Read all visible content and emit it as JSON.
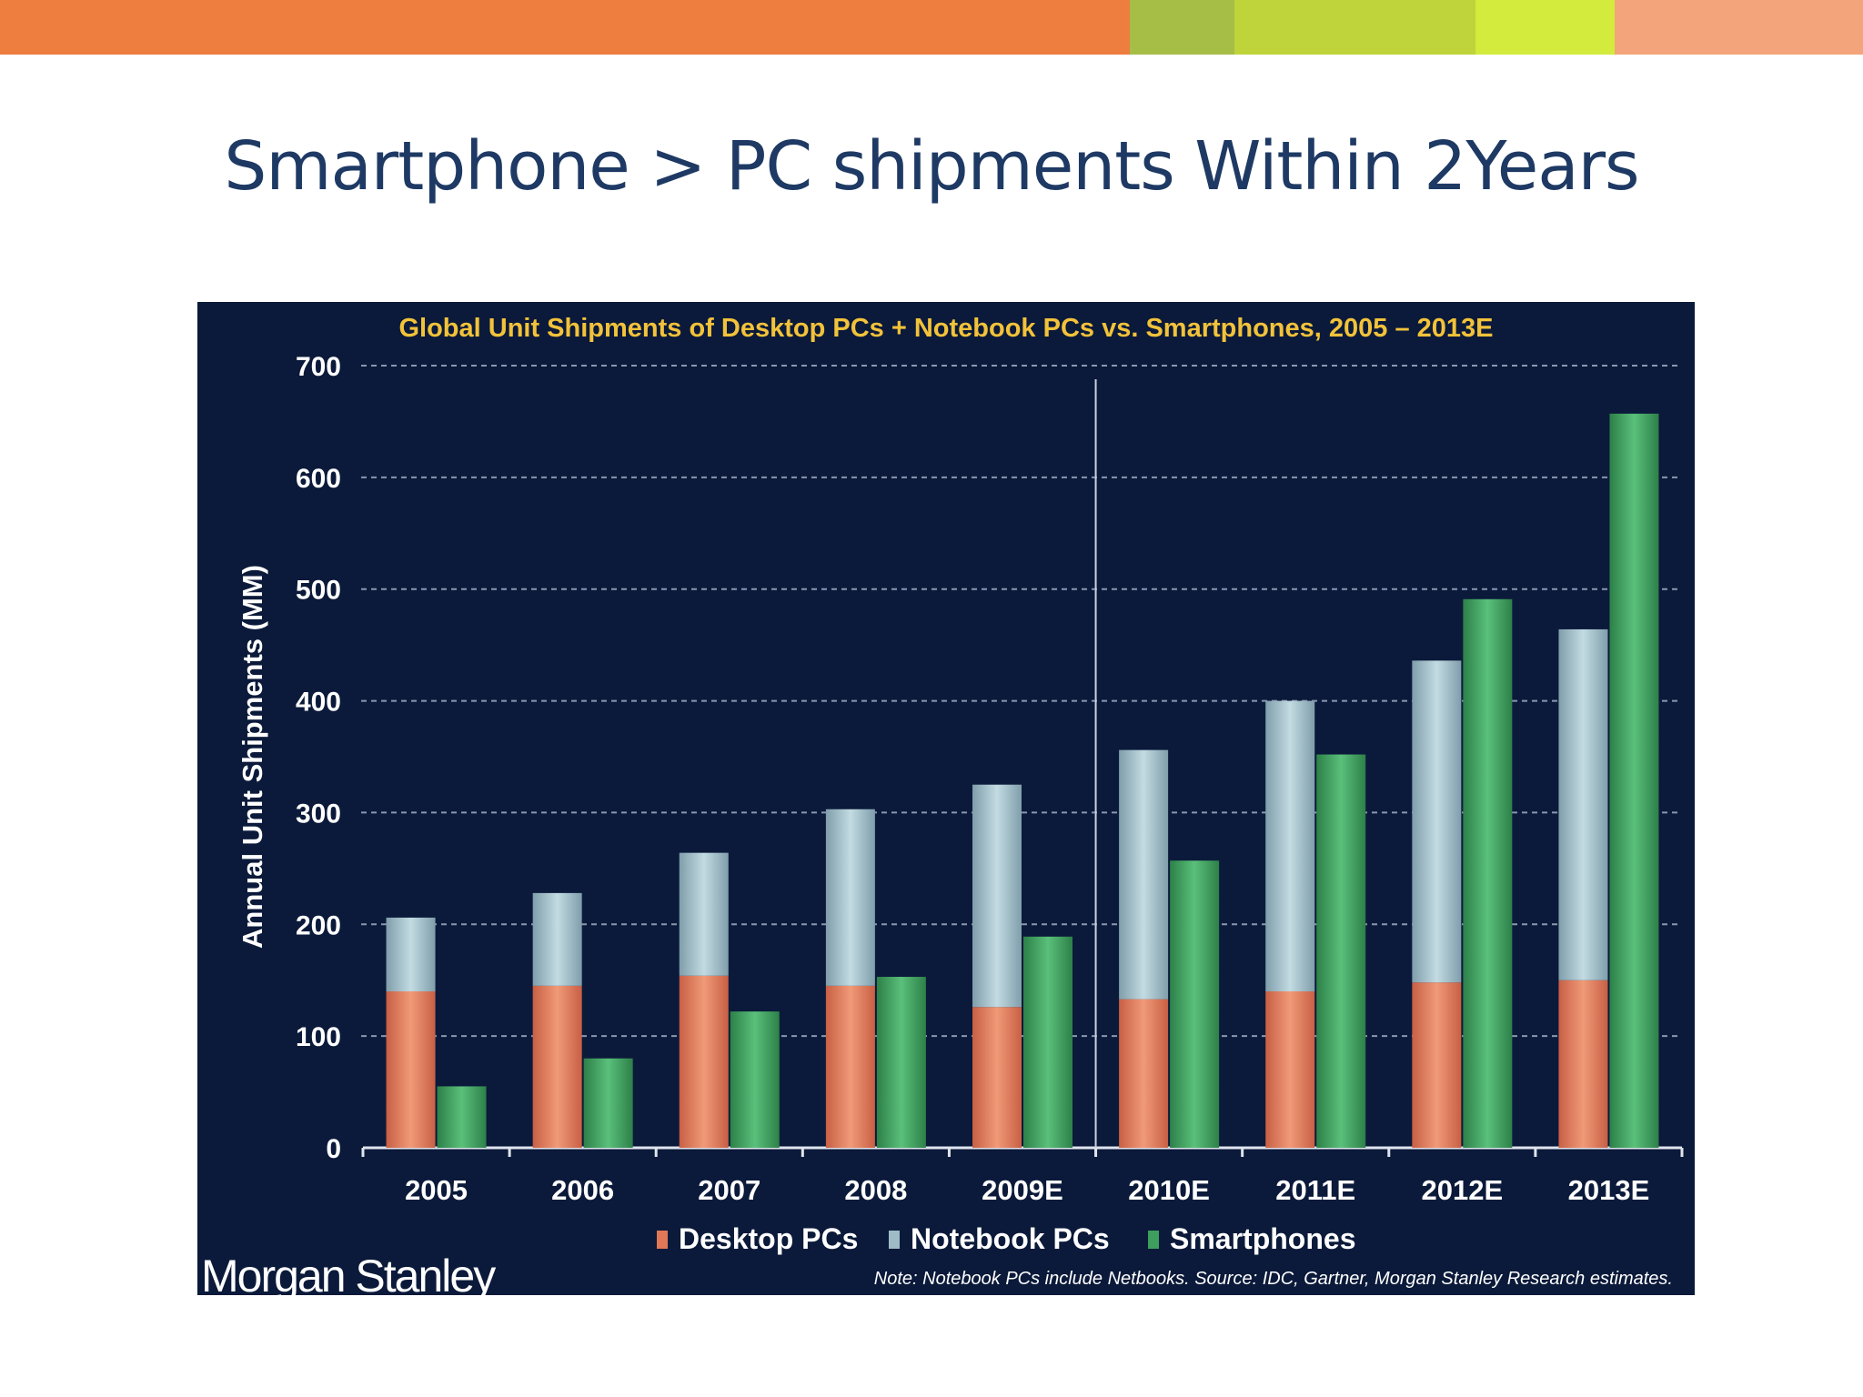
{
  "slide": {
    "title": "Smartphone > PC shipments Within 2Years",
    "top_bar_colors": [
      "#ee7d40",
      "#a6bd46",
      "#bfd43a",
      "#d2eb3c",
      "#f4a47b"
    ]
  },
  "colors": {
    "panel_bg": "#0b1a3a",
    "chart_title": "#f2c23a",
    "desktop": "#e07857",
    "notebook": "#9dbcc6",
    "smartphone": "#3d9e5e",
    "axis_text": "#ffffff"
  },
  "logo": {
    "text": "Morgan Stanley"
  },
  "chart_data": {
    "type": "bar",
    "title": "Global Unit Shipments of Desktop PCs + Notebook PCs vs. Smartphones, 2005 – 2013E",
    "xlabel": "",
    "ylabel": "Annual Unit Shipments (MM)",
    "ylim": [
      0,
      700
    ],
    "yticks": [
      0,
      100,
      200,
      300,
      400,
      500,
      600,
      700
    ],
    "grid": true,
    "categories": [
      "2005",
      "2006",
      "2007",
      "2008",
      "2009E",
      "2010E",
      "2011E",
      "2012E",
      "2013E"
    ],
    "series": [
      {
        "name": "Desktop PCs",
        "stack": "PCs",
        "values": [
          140,
          145,
          154,
          145,
          126,
          133,
          140,
          148,
          150
        ]
      },
      {
        "name": "Notebook PCs",
        "stack": "PCs",
        "values": [
          66,
          83,
          110,
          158,
          199,
          223,
          260,
          288,
          314
        ]
      },
      {
        "name": "Smartphones",
        "stack": "Smartphones",
        "values": [
          55,
          80,
          122,
          153,
          189,
          257,
          352,
          491,
          657
        ]
      }
    ],
    "divider_after_category": "2009E",
    "legend": [
      "Desktop PCs",
      "Notebook PCs",
      "Smartphones"
    ],
    "legend_position": "bottom-center",
    "note": "Note: Notebook PCs include Netbooks. Source: IDC, Gartner, Morgan Stanley Research estimates."
  }
}
